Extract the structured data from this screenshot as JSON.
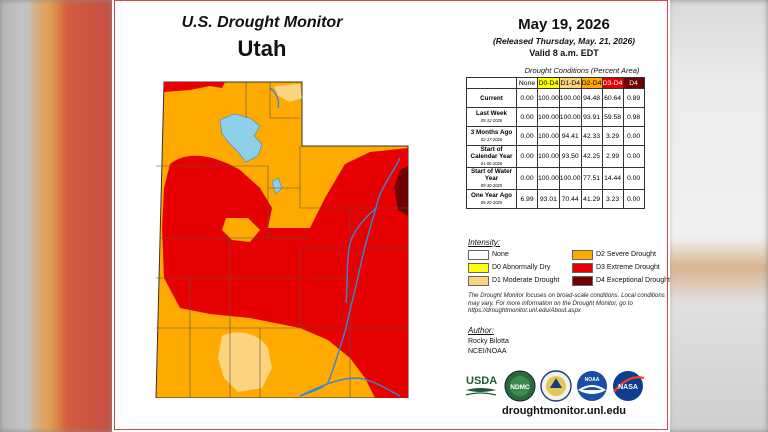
{
  "title": "U.S. Drought Monitor",
  "state": "Utah",
  "date": "May 19, 2026",
  "released": "(Released Thursday, May. 21, 2026)",
  "valid": "Valid 8 a.m. EDT",
  "table": {
    "caption": "Drought Conditions (Percent Area)",
    "headers": [
      "None",
      "D0-D4",
      "D1-D4",
      "D2-D4",
      "D3-D4",
      "D4"
    ],
    "header_colors": [
      "#ffffff",
      "#ffff00",
      "#fcd37f",
      "#ffaa00",
      "#e60000",
      "#730000"
    ],
    "rows": [
      {
        "label": "Current",
        "date": "",
        "values": [
          "0.00",
          "100.00",
          "100.00",
          "94.48",
          "60.64",
          "0.89"
        ]
      },
      {
        "label": "Last Week",
        "date": "05-12-2026",
        "values": [
          "0.00",
          "100.00",
          "100.00",
          "93.91",
          "59.58",
          "0.98"
        ]
      },
      {
        "label": "3 Months Ago",
        "date": "02-17-2026",
        "values": [
          "0.00",
          "100.00",
          "94.41",
          "42.33",
          "3.29",
          "0.00"
        ]
      },
      {
        "label": "Start of Calendar Year",
        "date": "01-06-2026",
        "values": [
          "0.00",
          "100.00",
          "93.50",
          "42.25",
          "2.99",
          "0.00"
        ]
      },
      {
        "label": "Start of Water Year",
        "date": "09-30-2025",
        "values": [
          "0.00",
          "100.00",
          "100.00",
          "77.51",
          "14.44",
          "0.00"
        ]
      },
      {
        "label": "One Year Ago",
        "date": "05-20-2025",
        "values": [
          "6.99",
          "93.01",
          "70.44",
          "41.29",
          "3.23",
          "0.00"
        ]
      }
    ]
  },
  "intensity": {
    "title": "Intensity:",
    "items": [
      {
        "label": "None",
        "color": "#ffffff"
      },
      {
        "label": "D2 Severe Drought",
        "color": "#ffaa00"
      },
      {
        "label": "D0 Abnormally Dry",
        "color": "#ffff00"
      },
      {
        "label": "D3 Extreme Drought",
        "color": "#e60000"
      },
      {
        "label": "D1 Moderate Drought",
        "color": "#fcd37f"
      },
      {
        "label": "D4 Exceptional Drought",
        "color": "#730000"
      }
    ]
  },
  "note": "The Drought Monitor focuses on broad-scale conditions. Local conditions may vary. For more information on the Drought Monitor, go to https://droughtmonitor.unl.edu/About.aspx",
  "author": {
    "heading": "Author:",
    "name": "Rocky Bilotta",
    "org": "NCEI/NOAA"
  },
  "logos": {
    "usda": "USDA",
    "ndmc": "NDMC",
    "noaa": "NOAA",
    "nasa": "NASA"
  },
  "url": "droughtmonitor.unl.edu",
  "map_colors": {
    "d1": "#fcd37f",
    "d2": "#ffaa00",
    "d3": "#e60000",
    "d4": "#730000",
    "water": "#8ed0e8",
    "river": "#3a86d6"
  }
}
